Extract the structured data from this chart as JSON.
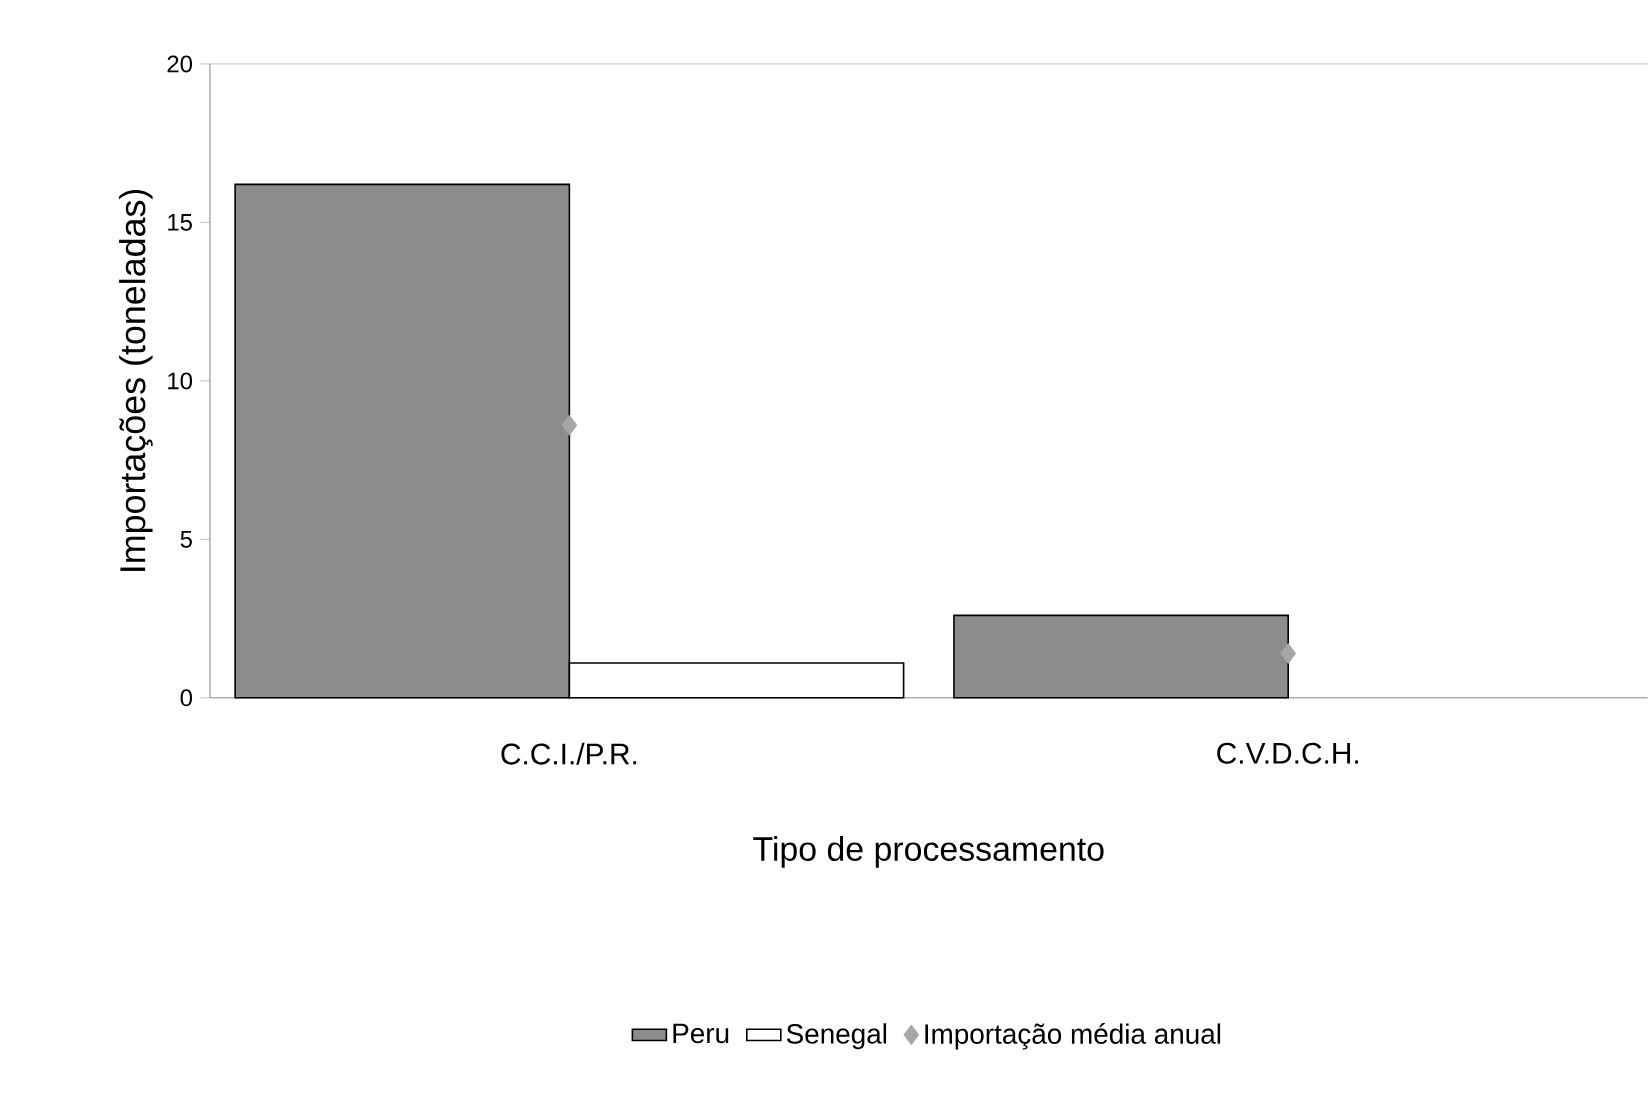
{
  "chart_data": {
    "type": "bar",
    "xlabel": "Tipo de processamento",
    "ylabel": "Importações (toneladas)",
    "categories": [
      "C.C.I./P.R.",
      "C.V.D.C.H."
    ],
    "series": [
      {
        "name": "Peru",
        "color": "#8c8c8c",
        "values": [
          16.2,
          2.6
        ]
      },
      {
        "name": "Senegal",
        "color": "#ffffff",
        "values": [
          1.1,
          null
        ]
      },
      {
        "name": "Importação média anual",
        "type": "scatter",
        "color": "#a6a6a6",
        "marker": "diamond",
        "values": [
          8.6,
          1.4
        ]
      }
    ],
    "ylim": [
      0,
      20
    ],
    "yticks": [
      0,
      5,
      10,
      15,
      20
    ],
    "grid": false,
    "legend": "bottom"
  }
}
